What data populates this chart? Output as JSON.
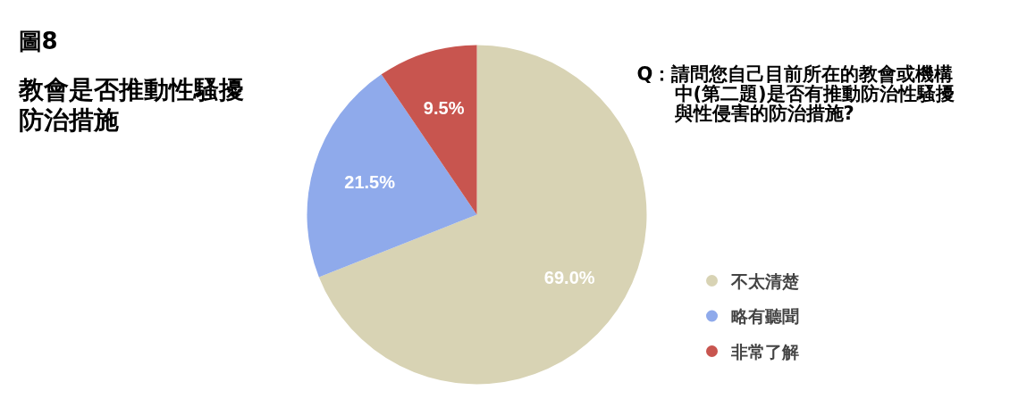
{
  "chart_data": {
    "type": "pie",
    "title": "圖8",
    "subtitle": "教會是否推動性騷擾防治措施",
    "annotations": [
      "Q：請問您自己目前所在的教會或機構中(第二題)是否有推動防治性騷擾與性侵害的防治措施?"
    ],
    "categories": [
      "不太清楚",
      "略有聽聞",
      "非常了解"
    ],
    "values": [
      69.0,
      21.5,
      9.5
    ],
    "value_labels": [
      "69.0%",
      "21.5%",
      "9.5%"
    ],
    "colors": [
      "#d8d3b4",
      "#8faaeb",
      "#c8554f"
    ],
    "legend": "right"
  }
}
